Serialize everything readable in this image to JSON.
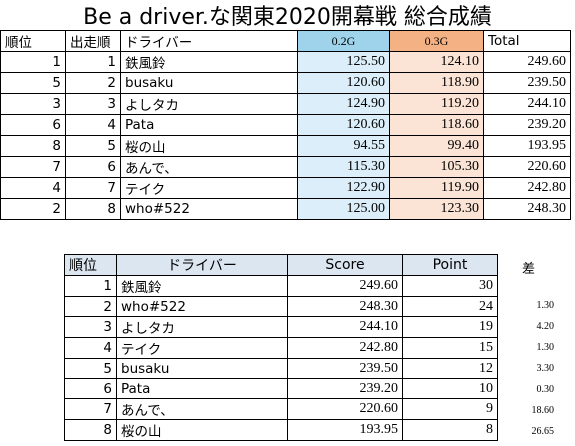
{
  "title": "Be a driver.な関東2020開幕戦 総合成績",
  "results_table": {
    "headers": {
      "rank": "順位",
      "start_order": "出走順",
      "driver": "ドライバー",
      "run1": "0.2G",
      "run2": "0.3G",
      "total": "Total"
    },
    "rows": [
      {
        "rank": "1",
        "order": "1",
        "driver": "鉄風鈴",
        "run1": "125.50",
        "run2": "124.10",
        "total": "249.60"
      },
      {
        "rank": "5",
        "order": "2",
        "driver": "busaku",
        "run1": "120.60",
        "run2": "118.90",
        "total": "239.50"
      },
      {
        "rank": "3",
        "order": "3",
        "driver": "よしタカ",
        "run1": "124.90",
        "run2": "119.20",
        "total": "244.10"
      },
      {
        "rank": "6",
        "order": "4",
        "driver": "Pata",
        "run1": "120.60",
        "run2": "118.60",
        "total": "239.20"
      },
      {
        "rank": "8",
        "order": "5",
        "driver": "桜の山",
        "run1": "94.55",
        "run2": "99.40",
        "total": "193.95"
      },
      {
        "rank": "7",
        "order": "6",
        "driver": "あんで、",
        "run1": "115.30",
        "run2": "105.30",
        "total": "220.60"
      },
      {
        "rank": "4",
        "order": "7",
        "driver": "テイク",
        "run1": "122.90",
        "run2": "119.90",
        "total": "242.80"
      },
      {
        "rank": "2",
        "order": "8",
        "driver": "who#522",
        "run1": "125.00",
        "run2": "123.30",
        "total": "248.30"
      }
    ]
  },
  "ranking_table": {
    "headers": {
      "rank": "順位",
      "driver": "ドライバー",
      "score": "Score",
      "point": "Point",
      "diff": "差"
    },
    "rows": [
      {
        "rank": "1",
        "driver": "鉄風鈴",
        "score": "249.60",
        "point": "30",
        "diff": ""
      },
      {
        "rank": "2",
        "driver": "who#522",
        "score": "248.30",
        "point": "24",
        "diff": "1.30"
      },
      {
        "rank": "3",
        "driver": "よしタカ",
        "score": "244.10",
        "point": "19",
        "diff": "4.20"
      },
      {
        "rank": "4",
        "driver": "テイク",
        "score": "242.80",
        "point": "15",
        "diff": "1.30"
      },
      {
        "rank": "5",
        "driver": "busaku",
        "score": "239.50",
        "point": "12",
        "diff": "3.30"
      },
      {
        "rank": "6",
        "driver": "Pata",
        "score": "239.20",
        "point": "10",
        "diff": "0.30"
      },
      {
        "rank": "7",
        "driver": "あんで、",
        "score": "220.60",
        "point": "9",
        "diff": "18.60"
      },
      {
        "rank": "8",
        "driver": "桜の山",
        "score": "193.95",
        "point": "8",
        "diff": "26.65"
      }
    ]
  },
  "colors": {
    "run1_header": "#9fd3ec",
    "run1_cell": "#dbeef9",
    "run2_header": "#f4b183",
    "run2_cell": "#fbe4d5",
    "ranking_header": "#dce6f1"
  }
}
